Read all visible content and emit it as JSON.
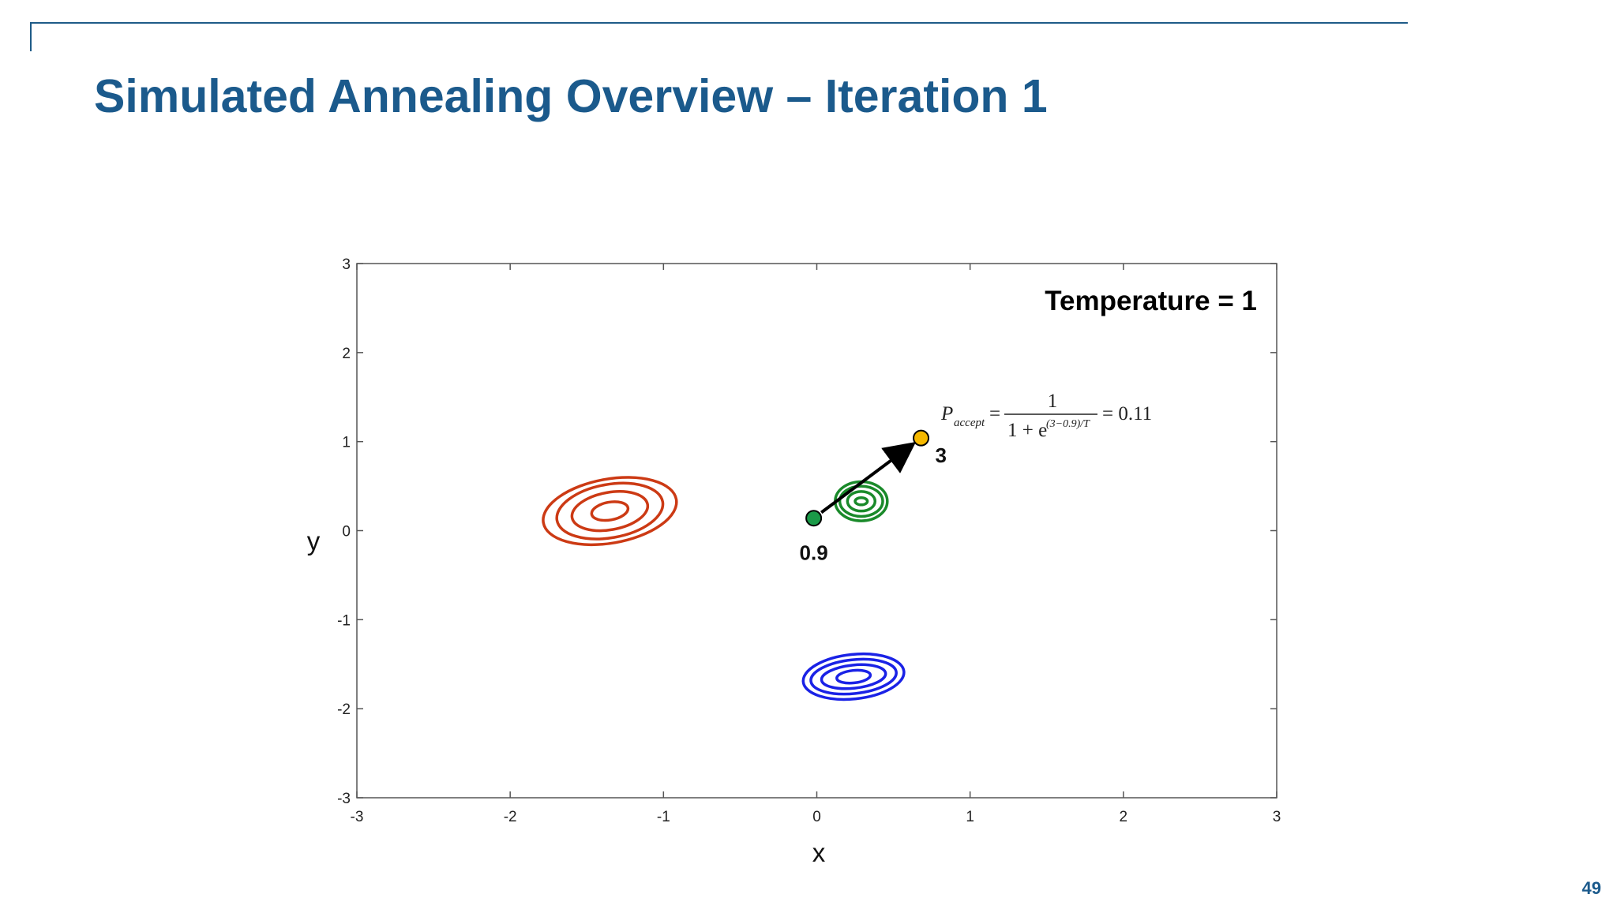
{
  "slide": {
    "title": "Simulated Annealing Overview – Iteration 1",
    "page_number": "49",
    "accent_color": "#1b5a8c"
  },
  "chart_data": {
    "type": "contour",
    "xlabel": "x",
    "ylabel": "y",
    "xlim": [
      -3,
      3
    ],
    "ylim": [
      -3,
      3
    ],
    "xticks": [
      "-3",
      "-2",
      "-1",
      "0",
      "1",
      "2",
      "3"
    ],
    "yticks": [
      "3",
      "2",
      "1",
      "0",
      "-1",
      "-2",
      "-3"
    ],
    "grid": false,
    "annotation": "Temperature = 1",
    "formula": {
      "p": "P",
      "sub": "accept",
      "eq": "=",
      "numerator": "1",
      "denominator_base": "1 + e",
      "exponent": "(3−0.9)/T",
      "result": "= 0.11"
    },
    "contours": [
      {
        "name": "red-basin",
        "color": "#cc3a14",
        "center": [
          -1.35,
          0.22
        ],
        "radii": [
          [
            0.12,
            0.1
          ],
          [
            0.25,
            0.21
          ],
          [
            0.35,
            0.3
          ],
          [
            0.44,
            0.36
          ]
        ],
        "tilt": -10
      },
      {
        "name": "green-basin",
        "color": "#1a8a2a",
        "center": [
          0.29,
          0.33
        ],
        "radii": [
          [
            0.04,
            0.04
          ],
          [
            0.09,
            0.11
          ],
          [
            0.14,
            0.17
          ],
          [
            0.17,
            0.22
          ]
        ],
        "tilt": 0
      },
      {
        "name": "blue-basin",
        "color": "#1a22e6",
        "center": [
          0.24,
          -1.64
        ],
        "radii": [
          [
            0.11,
            0.07
          ],
          [
            0.21,
            0.13
          ],
          [
            0.28,
            0.19
          ],
          [
            0.33,
            0.25
          ]
        ],
        "tilt": -6
      }
    ],
    "points": [
      {
        "name": "current",
        "x": -0.02,
        "y": 0.14,
        "color": "#1a9a48",
        "label": "0.9"
      },
      {
        "name": "candidate",
        "x": 0.68,
        "y": 1.04,
        "color": "#f5b800",
        "label": "3"
      }
    ],
    "arrow": {
      "from": "current",
      "to": "candidate"
    }
  }
}
